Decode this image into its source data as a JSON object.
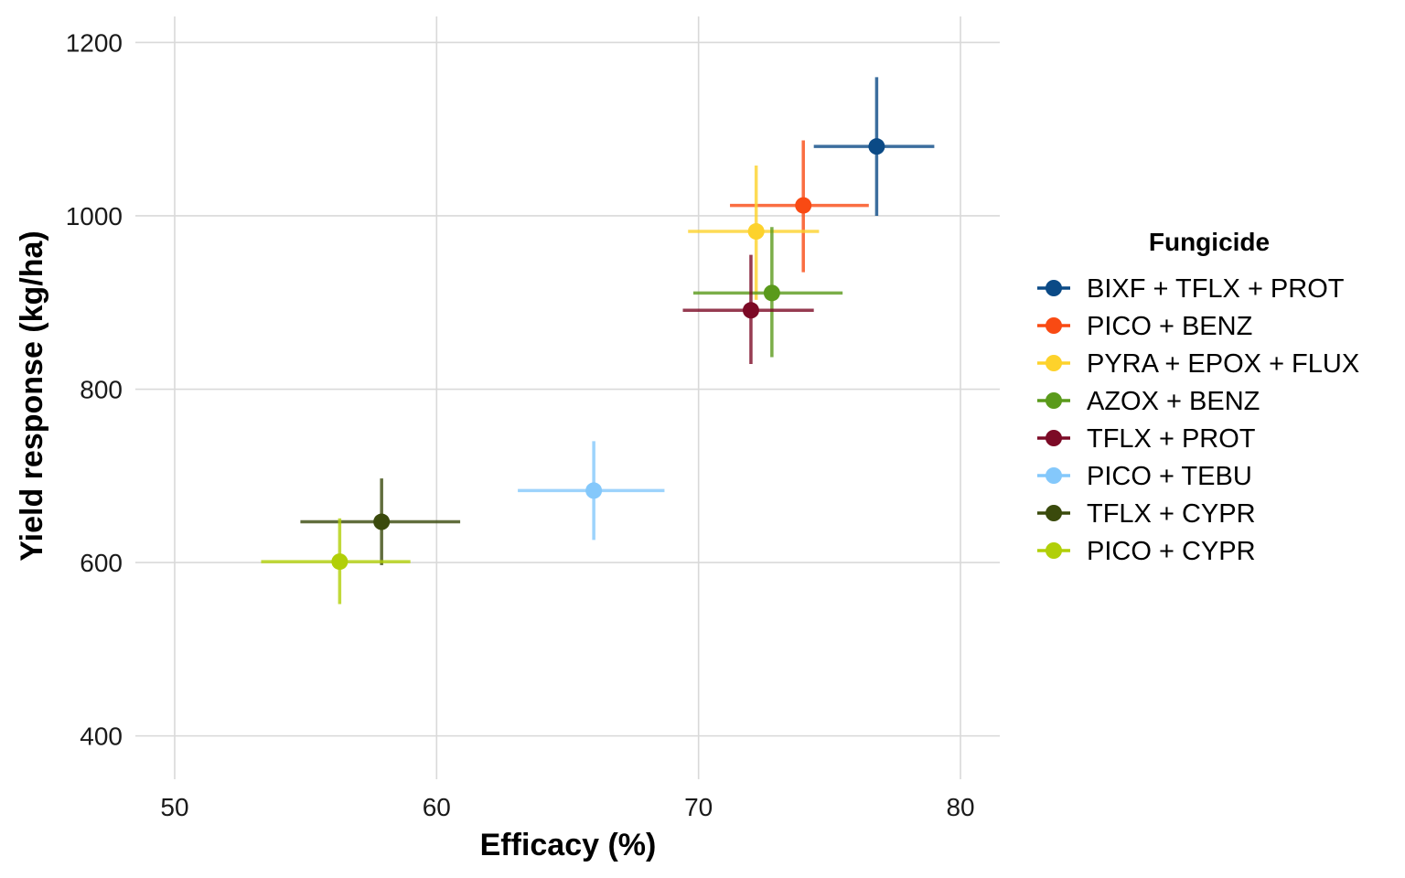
{
  "chart_data": {
    "type": "scatter",
    "title": "",
    "xlabel": "Efficacy (%)",
    "ylabel": "Yield response (kg/ha)",
    "xlim": [
      48.5,
      81.5
    ],
    "ylim": [
      350,
      1230
    ],
    "xticks": [
      50,
      60,
      70,
      80
    ],
    "yticks": [
      400,
      600,
      800,
      1000,
      1200
    ],
    "grid": true,
    "legend": {
      "title": "Fungicide",
      "placement": "right"
    },
    "series": [
      {
        "name": "BIXF + TFLX + PROT",
        "color": "#0b4a86",
        "x": 76.8,
        "y": 1080,
        "x_err": [
          74.4,
          79.0
        ],
        "y_err": [
          1000,
          1160
        ]
      },
      {
        "name": "PICO + BENZ",
        "color": "#f94a13",
        "x": 74.0,
        "y": 1012,
        "x_err": [
          71.2,
          76.5
        ],
        "y_err": [
          935,
          1087
        ]
      },
      {
        "name": "PYRA + EPOX + FLUX",
        "color": "#fdd22b",
        "x": 72.2,
        "y": 982,
        "x_err": [
          69.6,
          74.6
        ],
        "y_err": [
          903,
          1058
        ]
      },
      {
        "name": "AZOX + BENZ",
        "color": "#5a9a1b",
        "x": 72.8,
        "y": 911,
        "x_err": [
          69.8,
          75.5
        ],
        "y_err": [
          837,
          987
        ]
      },
      {
        "name": "TFLX + PROT",
        "color": "#7c0a26",
        "x": 72.0,
        "y": 891,
        "x_err": [
          69.4,
          74.4
        ],
        "y_err": [
          829,
          955
        ]
      },
      {
        "name": "PICO + TEBU",
        "color": "#84c8fb",
        "x": 66.0,
        "y": 683,
        "x_err": [
          63.1,
          68.7
        ],
        "y_err": [
          626,
          740
        ]
      },
      {
        "name": "TFLX + CYPR",
        "color": "#3a4a0c",
        "x": 57.9,
        "y": 647,
        "x_err": [
          54.8,
          60.9
        ],
        "y_err": [
          597,
          697
        ]
      },
      {
        "name": "PICO + CYPR",
        "color": "#b1cf08",
        "x": 56.3,
        "y": 601,
        "x_err": [
          53.3,
          59.0
        ],
        "y_err": [
          552,
          651
        ]
      }
    ]
  }
}
